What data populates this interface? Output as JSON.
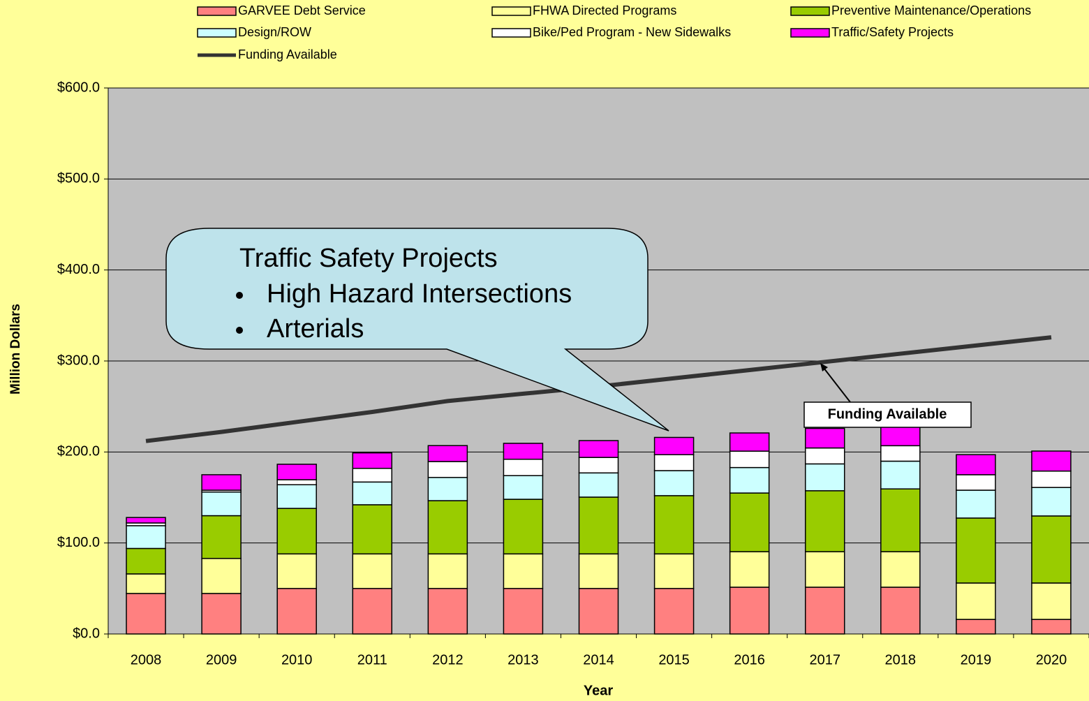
{
  "chart_data": {
    "type": "stacked_bar",
    "categories": [
      "2008",
      "2009",
      "2010",
      "2011",
      "2012",
      "2013",
      "2014",
      "2015",
      "2016",
      "2017",
      "2018",
      "2019",
      "2020"
    ],
    "series": [
      {
        "name": "GARVEE Debt Service",
        "color": "#FF8080",
        "values": [
          44.5,
          44.5,
          50,
          50,
          50,
          50,
          50,
          50,
          51.4,
          51.4,
          51.4,
          16,
          16
        ]
      },
      {
        "name": "FHWA Directed Programs",
        "color": "#FFFF99",
        "values": [
          21.5,
          38.5,
          38,
          38,
          38,
          38,
          38,
          38,
          39,
          39,
          39,
          40,
          40
        ]
      },
      {
        "name": "Preventive Maintenance/Operations",
        "color": "#99CC00",
        "values": [
          28,
          47,
          50,
          54,
          58.5,
          60,
          62.4,
          64,
          64.5,
          67,
          69,
          71.4,
          73.7
        ]
      },
      {
        "name": "Design/ROW",
        "color": "#CCFFFF",
        "values": [
          25,
          26,
          26,
          25,
          25.5,
          26,
          26.6,
          27.5,
          28,
          29.5,
          30.5,
          30.6,
          31.3
        ]
      },
      {
        "name": "Bike/Ped Program - New Sidewalks",
        "color": "#FFFFFF",
        "values": [
          3,
          2,
          5.5,
          15,
          17.5,
          18,
          17,
          17.5,
          18,
          17.5,
          17,
          17,
          18
        ]
      },
      {
        "name": "Traffic/Safety Projects",
        "color": "#FF00FF",
        "values": [
          6,
          17,
          17,
          17,
          17.5,
          17.5,
          18.5,
          19,
          20,
          21.5,
          21,
          22,
          22
        ]
      }
    ],
    "line_series": {
      "name": "Funding Available",
      "color": "#333333",
      "values": [
        212,
        222,
        233,
        244,
        256,
        264,
        272,
        281,
        290,
        299,
        308,
        317,
        326
      ]
    },
    "ylim": [
      0,
      600
    ],
    "yticks": [
      {
        "value": 0,
        "label": "$0.0"
      },
      {
        "value": 100,
        "label": "$100.0"
      },
      {
        "value": 200,
        "label": "$200.0"
      },
      {
        "value": 300,
        "label": "$300.0"
      },
      {
        "value": 400,
        "label": "$400.0"
      },
      {
        "value": 500,
        "label": "$500.0"
      },
      {
        "value": 600,
        "label": "$600.0"
      }
    ],
    "grid": true,
    "y_label": "Million Dollars",
    "x_label": "Year",
    "callout": {
      "title": "Traffic Safety Projects",
      "bullets": [
        "High Hazard Intersections",
        "Arterials"
      ]
    },
    "annotation": "Funding Available"
  }
}
